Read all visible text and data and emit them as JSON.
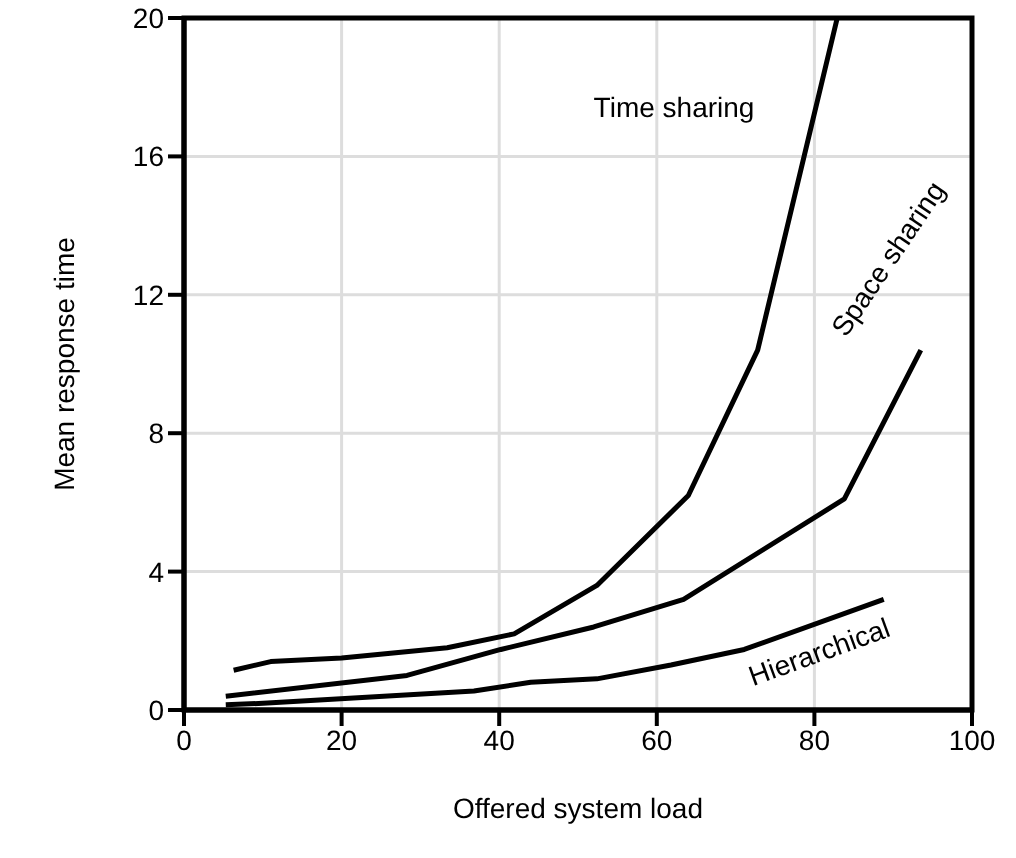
{
  "chart_data": {
    "type": "line",
    "xlabel": "Offered system load",
    "ylabel": "Mean response time",
    "xlim": [
      0,
      100
    ],
    "xticks": [
      0,
      20,
      40,
      60,
      80,
      100
    ],
    "ylim": [
      0,
      20
    ],
    "yticks": [
      0,
      4,
      8,
      12,
      16,
      20
    ],
    "grid": true,
    "legend": false,
    "marker": "none",
    "line_style": "solid",
    "series": [
      {
        "name": "Time sharing",
        "color": "#000000",
        "x": [
          6.3,
          11,
          20,
          33.4,
          41.9,
          52.4,
          64,
          72.8,
          82.9
        ],
        "values": [
          1.15,
          1.4,
          1.5,
          1.8,
          2.2,
          3.6,
          6.2,
          10.4,
          20
        ]
      },
      {
        "name": "Space sharing",
        "color": "#000000",
        "x": [
          5.3,
          28.3,
          40.2,
          52,
          63.4,
          83.8,
          93.5
        ],
        "values": [
          0.4,
          1,
          1.75,
          2.4,
          3.2,
          6.1,
          10.4
        ]
      },
      {
        "name": "Hierarchical",
        "color": "#000000",
        "x": [
          5.3,
          10.6,
          36.8,
          44,
          52.4,
          61.8,
          71.1,
          88.8
        ],
        "values": [
          0.15,
          0.2,
          0.55,
          0.8,
          0.9,
          1.3,
          1.75,
          3.2
        ]
      }
    ]
  }
}
